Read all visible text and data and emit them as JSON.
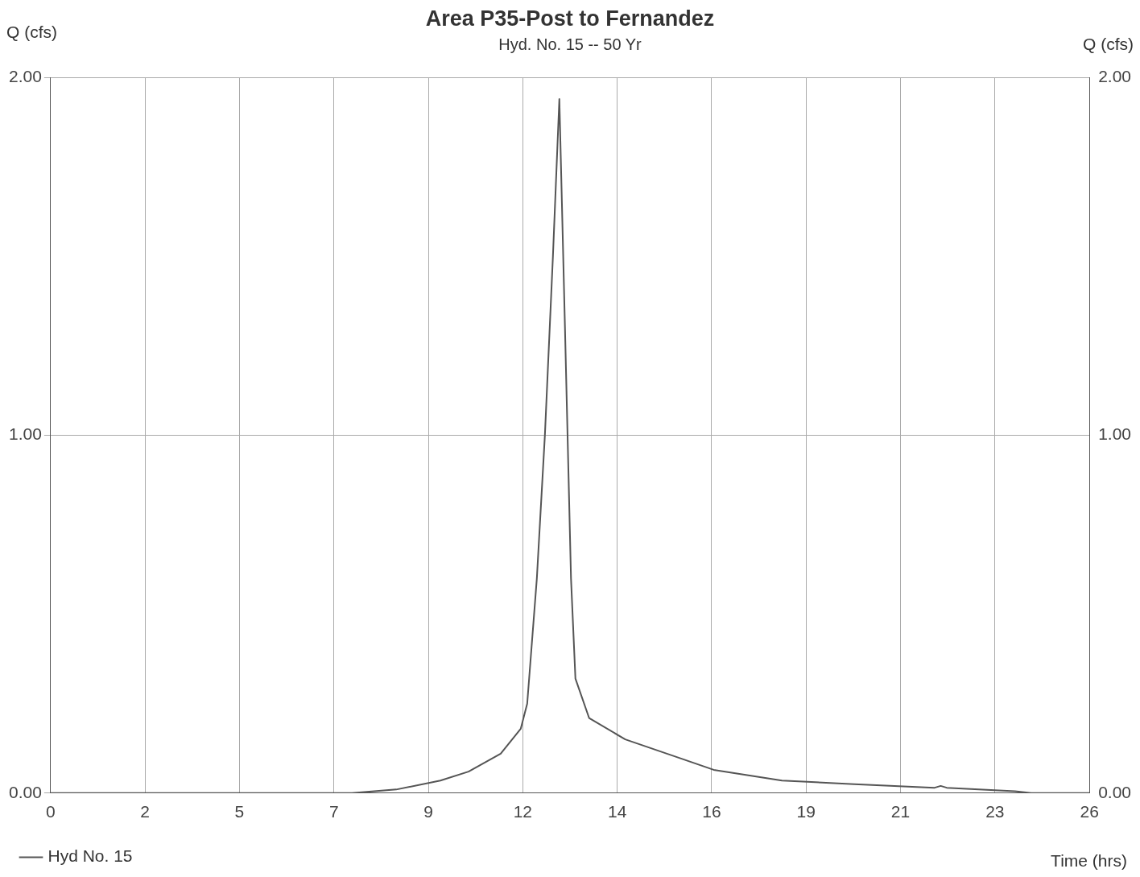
{
  "chart_data": {
    "type": "line",
    "title": "Area P35-Post to Fernandez",
    "subtitle": "Hyd. No. 15 -- 50 Yr",
    "xlabel": "Time (hrs)",
    "ylabel": "Q (cfs)",
    "y2label": "Q (cfs)",
    "series": [
      {
        "name": "Hyd No. 15",
        "color": "#555555",
        "x": [
          0,
          3,
          6,
          7.5,
          8.6,
          9.7,
          10.4,
          11.2,
          11.7,
          11.86,
          12.1,
          12.3,
          12.5,
          12.66,
          12.8,
          12.95,
          13.06,
          13.4,
          14.3,
          15.6,
          16.5,
          18.2,
          20,
          22,
          22.15,
          22.3,
          24,
          24.4,
          25.85
        ],
        "values": [
          0,
          0,
          0,
          0,
          0.01,
          0.035,
          0.06,
          0.11,
          0.18,
          0.25,
          0.6,
          1.0,
          1.5,
          1.94,
          1.3,
          0.6,
          0.32,
          0.21,
          0.15,
          0.1,
          0.065,
          0.035,
          0.025,
          0.015,
          0.02,
          0.015,
          0.005,
          0,
          0
        ]
      }
    ],
    "xlim": [
      0,
      25.85
    ],
    "xticks": [
      {
        "value": 0,
        "label": "0"
      },
      {
        "value": 2.35,
        "label": "2"
      },
      {
        "value": 4.7,
        "label": "5"
      },
      {
        "value": 7.05,
        "label": "7"
      },
      {
        "value": 9.4,
        "label": "9"
      },
      {
        "value": 11.75,
        "label": "12"
      },
      {
        "value": 14.1,
        "label": "14"
      },
      {
        "value": 16.45,
        "label": "16"
      },
      {
        "value": 18.8,
        "label": "19"
      },
      {
        "value": 21.15,
        "label": "21"
      },
      {
        "value": 23.5,
        "label": "23"
      },
      {
        "value": 25.85,
        "label": "26"
      }
    ],
    "ylim": [
      0,
      2
    ],
    "yticks": [
      {
        "value": 0,
        "label": "0.00"
      },
      {
        "value": 1,
        "label": "1.00"
      },
      {
        "value": 2,
        "label": "2.00"
      }
    ],
    "y2lim": [
      0,
      2
    ],
    "y2ticks": [
      {
        "value": 0,
        "label": "0.00"
      },
      {
        "value": 1,
        "label": "1.00"
      },
      {
        "value": 2,
        "label": "2.00"
      }
    ],
    "grid": true,
    "legend": "bottom left",
    "marker": "none",
    "line_style": "solid"
  }
}
